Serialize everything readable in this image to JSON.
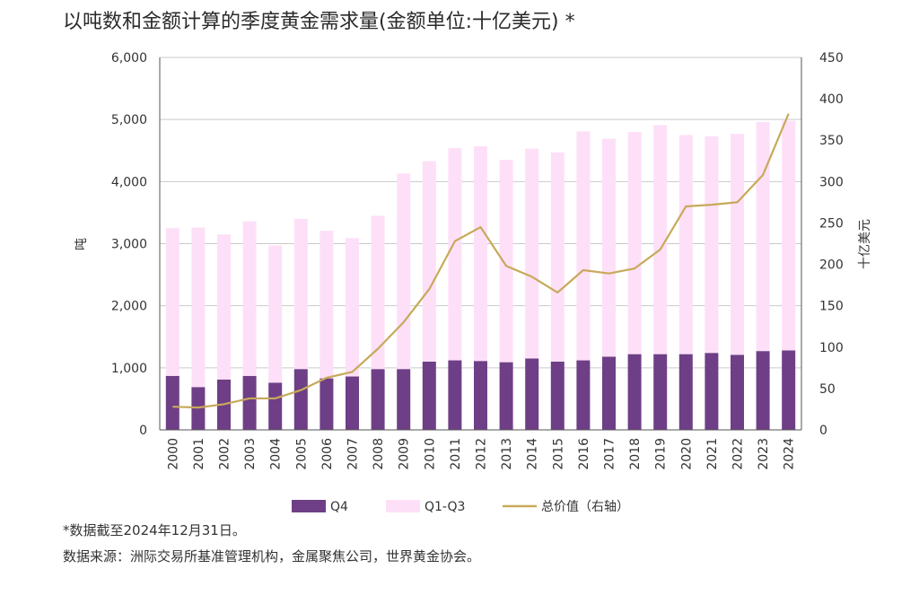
{
  "chart_data": {
    "type": "bar",
    "title": "以吨数和金额计算的季度黄金需求量(金额单位:十亿美元) *",
    "ylabel_left": "吨",
    "ylabel_right": "十亿美元",
    "ylim_left": [
      0,
      6000
    ],
    "ylim_right": [
      0,
      450
    ],
    "yticks_left": [
      "0",
      "1,000",
      "2,000",
      "3,000",
      "4,000",
      "5,000",
      "6,000"
    ],
    "yticks_right": [
      "0",
      "50",
      "100",
      "150",
      "200",
      "250",
      "300",
      "350",
      "400",
      "450"
    ],
    "grid": true,
    "stacked": true,
    "categories": [
      "2000",
      "2001",
      "2002",
      "2003",
      "2004",
      "2005",
      "2006",
      "2007",
      "2008",
      "2009",
      "2010",
      "2011",
      "2012",
      "2013",
      "2014",
      "2015",
      "2016",
      "2017",
      "2018",
      "2019",
      "2020",
      "2021",
      "2022",
      "2023",
      "2024"
    ],
    "series": [
      {
        "name": "Q4",
        "kind": "bar",
        "axis": "left",
        "color": "#6e3f86",
        "values": [
          870,
          690,
          810,
          870,
          760,
          980,
          830,
          860,
          980,
          980,
          1100,
          1120,
          1110,
          1090,
          1150,
          1100,
          1120,
          1180,
          1220,
          1220,
          1220,
          1240,
          1210,
          1270,
          1280
        ]
      },
      {
        "name": "Q1-Q3",
        "kind": "bar",
        "axis": "left",
        "color": "#fde0f8",
        "values": [
          2380,
          2570,
          2340,
          2490,
          2210,
          2420,
          2380,
          2230,
          2470,
          3150,
          3230,
          3420,
          3460,
          3260,
          3380,
          3370,
          3690,
          3510,
          3580,
          3690,
          3530,
          3490,
          3560,
          3690,
          3700
        ]
      },
      {
        "name": "总价值（右轴）",
        "kind": "line",
        "axis": "right",
        "color": "#c8a95a",
        "values": [
          28,
          27,
          31,
          38,
          38,
          48,
          63,
          70,
          98,
          130,
          170,
          228,
          245,
          198,
          185,
          166,
          193,
          189,
          195,
          218,
          270,
          272,
          275,
          308,
          382
        ]
      }
    ],
    "legend_position": "bottom"
  },
  "footnote": "*数据截至2024年12月31日。",
  "source": "数据来源：洲际交易所基准管理机构，金属聚焦公司，世界黄金协会。"
}
